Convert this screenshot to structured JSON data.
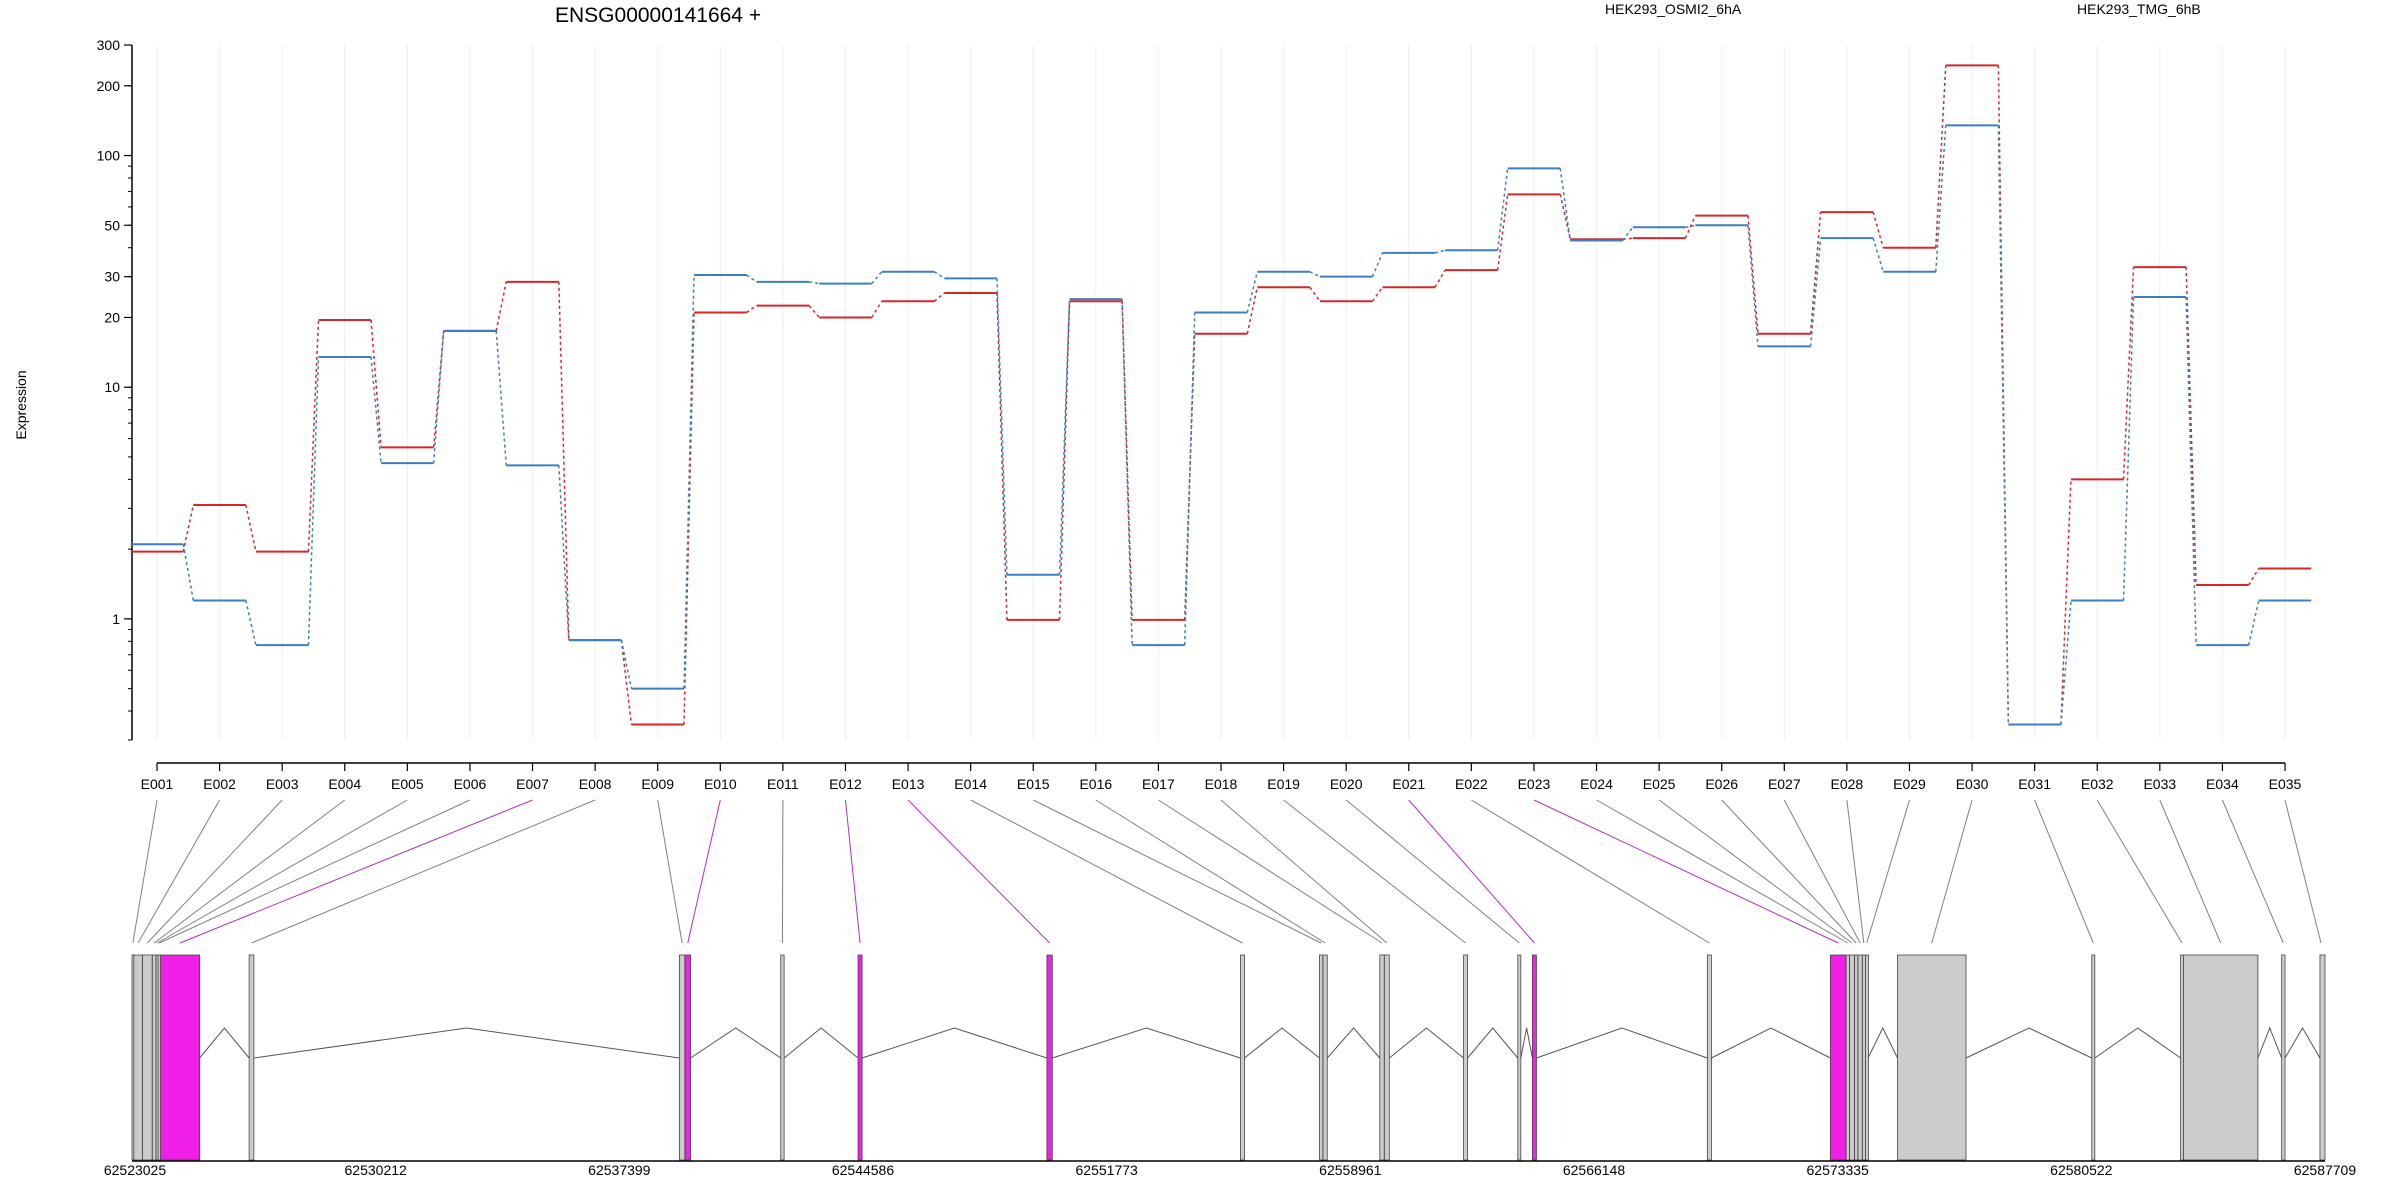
{
  "chart_data": {
    "type": "line",
    "title": "ENSG00000141664 +",
    "ylabel": "Expression",
    "yscale": "log",
    "ylim": [
      0.3,
      300
    ],
    "yticks": [
      1,
      10,
      20,
      30,
      50,
      100,
      200,
      300
    ],
    "ytick_labels": [
      "1",
      "10",
      "20",
      "30",
      "50",
      "100",
      "200",
      "300"
    ],
    "grid": "vertical, light",
    "legend_placement": "top",
    "categories": [
      "E001",
      "E002",
      "E003",
      "E004",
      "E005",
      "E006",
      "E007",
      "E008",
      "E009",
      "E010",
      "E011",
      "E012",
      "E013",
      "E014",
      "E015",
      "E016",
      "E017",
      "E018",
      "E019",
      "E020",
      "E021",
      "E022",
      "E023",
      "E024",
      "E025",
      "E026",
      "E027",
      "E028",
      "E029",
      "E030",
      "E031",
      "E032",
      "E033",
      "E034",
      "E035"
    ],
    "series": [
      {
        "name": "HEK293_OSMI2_6hA",
        "color": "#d62728",
        "values": [
          1.95,
          3.1,
          1.95,
          19.5,
          5.5,
          17.5,
          28.5,
          0.81,
          0.35,
          21,
          22.5,
          20,
          23.5,
          25.5,
          0.99,
          23.5,
          0.99,
          17,
          27,
          23.5,
          27,
          32,
          68,
          43.5,
          44,
          55,
          17,
          57,
          40,
          245,
          0.35,
          4.0,
          33,
          1.4,
          1.65
        ]
      },
      {
        "name": "HEK293_TMG_6hB",
        "color": "#3a7fc1",
        "values": [
          2.1,
          1.2,
          0.77,
          13.5,
          4.7,
          17.5,
          4.6,
          0.81,
          0.5,
          30.5,
          28.5,
          28,
          31.5,
          29.5,
          1.55,
          24,
          0.77,
          21,
          31.5,
          30,
          38,
          39,
          88,
          43,
          49,
          50,
          15,
          44,
          31.5,
          135,
          0.35,
          1.2,
          24.5,
          0.77,
          1.2
        ]
      }
    ],
    "gene_model": {
      "axis_ticks": [
        "62523025",
        "62530212",
        "62537399",
        "62544586",
        "62551773",
        "62558961",
        "62566148",
        "62573335",
        "62580522",
        "62587709"
      ],
      "start": 62523025,
      "end": 62587709,
      "exons": [
        {
          "id": "E001",
          "start": 62523025,
          "end": 62523075,
          "highlight": false
        },
        {
          "id": "E002",
          "start": 62523080,
          "end": 62523330,
          "highlight": false
        },
        {
          "id": "E003",
          "start": 62523335,
          "end": 62523620,
          "highlight": false
        },
        {
          "id": "E004",
          "start": 62523625,
          "end": 62523730,
          "highlight": false
        },
        {
          "id": "E005",
          "start": 62523735,
          "end": 62523790,
          "highlight": false
        },
        {
          "id": "E006",
          "start": 62523795,
          "end": 62523860,
          "highlight": false
        },
        {
          "id": "E007",
          "start": 62523865,
          "end": 62525020,
          "highlight": true
        },
        {
          "id": "E008",
          "start": 62526480,
          "end": 62526620,
          "highlight": false
        },
        {
          "id": "E009",
          "start": 62539170,
          "end": 62539330,
          "highlight": false
        },
        {
          "id": "E010",
          "start": 62539335,
          "end": 62539500,
          "highlight": true
        },
        {
          "id": "E011",
          "start": 62542160,
          "end": 62542260,
          "highlight": false
        },
        {
          "id": "E012",
          "start": 62544440,
          "end": 62544560,
          "highlight": true
        },
        {
          "id": "E013",
          "start": 62550010,
          "end": 62550170,
          "highlight": true
        },
        {
          "id": "E014",
          "start": 62555720,
          "end": 62555840,
          "highlight": false
        },
        {
          "id": "E015",
          "start": 62558050,
          "end": 62558150,
          "highlight": false
        },
        {
          "id": "E016",
          "start": 62558155,
          "end": 62558280,
          "highlight": false
        },
        {
          "id": "E017",
          "start": 62559830,
          "end": 62559960,
          "highlight": false
        },
        {
          "id": "E018",
          "start": 62559965,
          "end": 62560110,
          "highlight": false
        },
        {
          "id": "E019",
          "start": 62562300,
          "end": 62562420,
          "highlight": false
        },
        {
          "id": "E020",
          "start": 62563900,
          "end": 62563990,
          "highlight": false
        },
        {
          "id": "E021",
          "start": 62564330,
          "end": 62564450,
          "highlight": true
        },
        {
          "id": "E022",
          "start": 62569490,
          "end": 62569610,
          "highlight": false
        },
        {
          "id": "E023",
          "start": 62573120,
          "end": 62573580,
          "highlight": true
        },
        {
          "id": "E024",
          "start": 62573585,
          "end": 62573680,
          "highlight": false
        },
        {
          "id": "E025",
          "start": 62573685,
          "end": 62573830,
          "highlight": false
        },
        {
          "id": "E026",
          "start": 62573835,
          "end": 62573930,
          "highlight": false
        },
        {
          "id": "E027",
          "start": 62573935,
          "end": 62574060,
          "highlight": false
        },
        {
          "id": "E028",
          "start": 62574065,
          "end": 62574150,
          "highlight": false
        },
        {
          "id": "E029",
          "start": 62574155,
          "end": 62574230,
          "highlight": false
        },
        {
          "id": "E030",
          "start": 62575100,
          "end": 62577120,
          "highlight": false
        },
        {
          "id": "E031",
          "start": 62580830,
          "end": 62580920,
          "highlight": false
        },
        {
          "id": "E032",
          "start": 62583450,
          "end": 62583530,
          "highlight": false
        },
        {
          "id": "E033",
          "start": 62583535,
          "end": 62585730,
          "highlight": false
        },
        {
          "id": "E034",
          "start": 62586430,
          "end": 62586530,
          "highlight": false
        },
        {
          "id": "E035",
          "start": 62587560,
          "end": 62587709,
          "highlight": false
        }
      ]
    }
  },
  "colors": {
    "exon_fill": "#cccccc",
    "exon_highlight": "#f020e8",
    "connector_line": "#808080",
    "connector_highlight": "#b030c0",
    "grid": "#eeeeee"
  }
}
